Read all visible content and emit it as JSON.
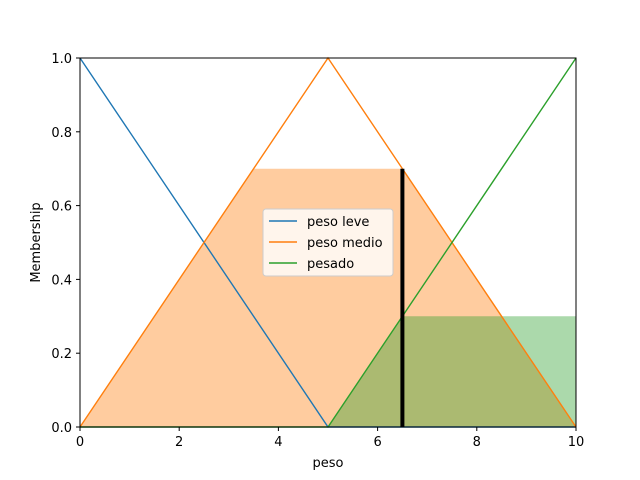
{
  "chart_data": {
    "type": "line",
    "xlabel": "peso",
    "ylabel": "Membership",
    "xlim": [
      0,
      10
    ],
    "ylim": [
      0,
      1
    ],
    "xticks": [
      0,
      2,
      4,
      6,
      8,
      10
    ],
    "yticks": [
      0.0,
      0.2,
      0.4,
      0.6,
      0.8,
      1.0
    ],
    "xtick_labels": [
      "0",
      "2",
      "4",
      "6",
      "8",
      "10"
    ],
    "ytick_labels": [
      "0.0",
      "0.2",
      "0.4",
      "0.6",
      "0.8",
      "1.0"
    ],
    "grid": false,
    "legend_position": "center",
    "series": [
      {
        "name": "peso leve",
        "color": "#1f77b4",
        "x": [
          0,
          5,
          10
        ],
        "y": [
          1,
          0,
          0
        ]
      },
      {
        "name": "peso medio",
        "color": "#ff7f0e",
        "x": [
          0,
          5,
          10
        ],
        "y": [
          0,
          1,
          0
        ]
      },
      {
        "name": "pesado",
        "color": "#2ca02c",
        "x": [
          0,
          5,
          10
        ],
        "y": [
          0,
          0,
          1
        ]
      }
    ],
    "activation_fills": [
      {
        "series": "peso medio",
        "color": "#ff7f0e",
        "opacity": 0.4,
        "x": [
          0,
          3.5,
          6.5,
          10
        ],
        "y": [
          0,
          0.7,
          0.7,
          0
        ]
      },
      {
        "series": "pesado",
        "color": "#2ca02c",
        "opacity": 0.4,
        "x": [
          5,
          6.5,
          10,
          10
        ],
        "y": [
          0,
          0.3,
          0.3,
          0
        ]
      }
    ],
    "crisp_input": {
      "x": 6.5,
      "y_max": 0.7,
      "color": "#000000"
    }
  }
}
